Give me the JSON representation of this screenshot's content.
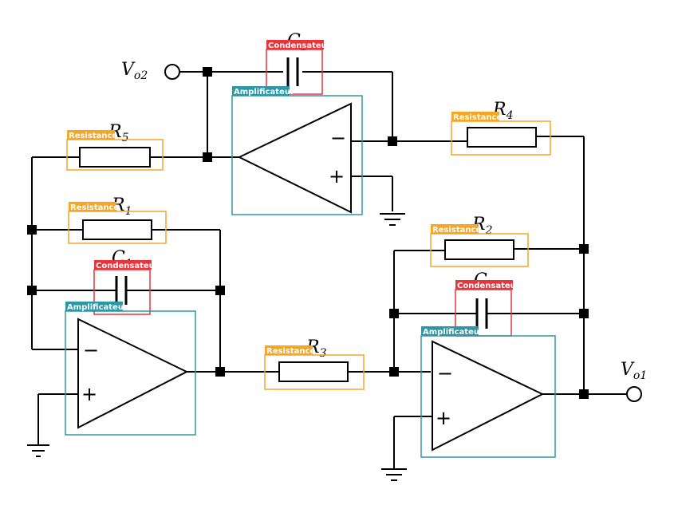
{
  "labels": {
    "vo2": "Vo2",
    "vo1": "Vo1",
    "r1": "R1",
    "r2": "R2",
    "r3": "R3",
    "r4": "R4",
    "r5": "R5",
    "c1": "C1",
    "c2": "C2",
    "c3": "C3"
  },
  "tags": {
    "resistor": "Resistance",
    "capacitor": "Condensateur",
    "amplifier": "Amplificateur"
  },
  "signs": {
    "minus": "−",
    "plus": "+"
  },
  "colors": {
    "resistor_box": "#f5a623",
    "capacitor_box": "#e8343c",
    "amplifier_box": "#2e97a5"
  }
}
